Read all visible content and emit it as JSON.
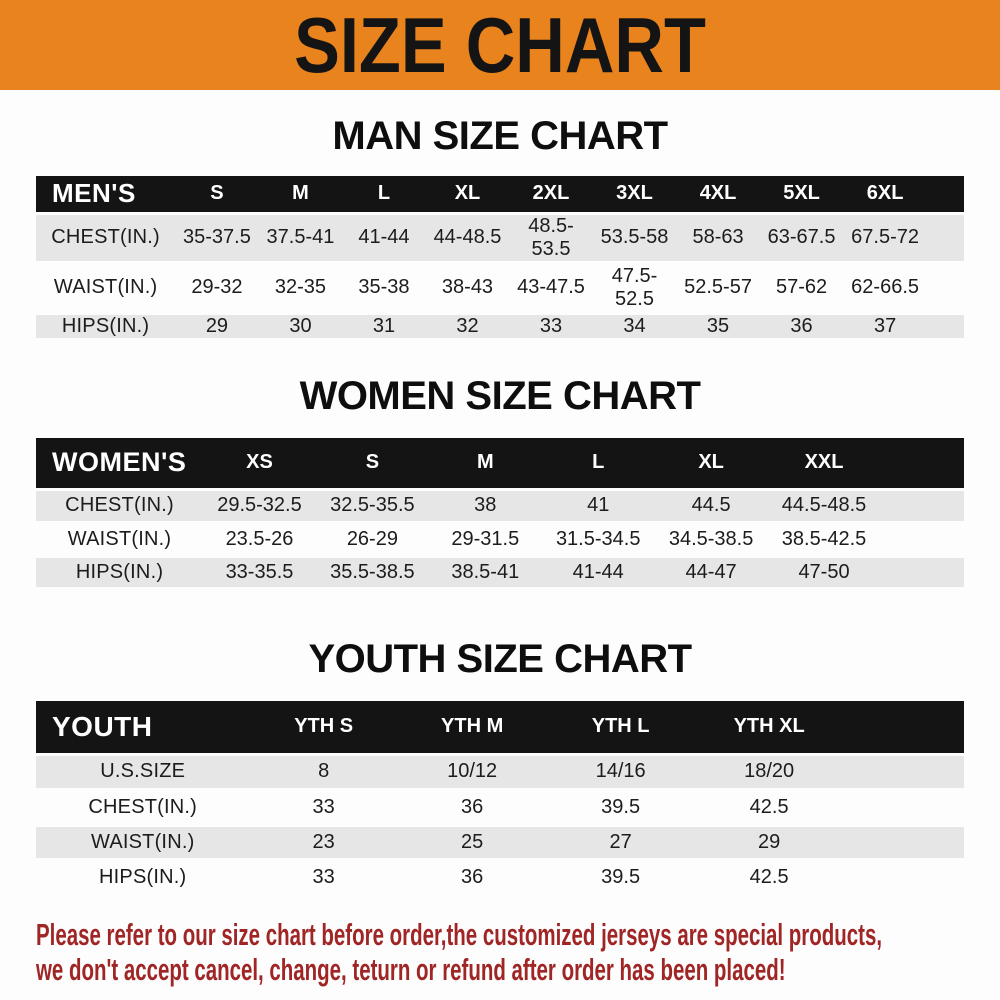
{
  "banner": {
    "title": "SIZE CHART",
    "background": "#E8831D",
    "text_color": "#141414"
  },
  "sections": [
    {
      "heading": "MAN SIZE CHART",
      "table": {
        "label": "MEN'S",
        "columns": [
          "S",
          "M",
          "L",
          "XL",
          "2XL",
          "3XL",
          "4XL",
          "5XL",
          "6XL"
        ],
        "rows": [
          {
            "label": "CHEST(IN.)",
            "values": [
              "35-37.5",
              "37.5-41",
              "41-44",
              "44-48.5",
              "48.5-53.5",
              "53.5-58",
              "58-63",
              "63-67.5",
              "67.5-72"
            ]
          },
          {
            "label": "WAIST(IN.)",
            "values": [
              "29-32",
              "32-35",
              "35-38",
              "38-43",
              "43-47.5",
              "47.5-52.5",
              "52.5-57",
              "57-62",
              "62-66.5"
            ]
          },
          {
            "label": "HIPS(IN.)",
            "values": [
              "29",
              "30",
              "31",
              "32",
              "33",
              "34",
              "35",
              "36",
              "37"
            ]
          }
        ]
      }
    },
    {
      "heading": "WOMEN SIZE CHART",
      "table": {
        "label": "WOMEN'S",
        "columns": [
          "XS",
          "S",
          "M",
          "L",
          "XL",
          "XXL"
        ],
        "rows": [
          {
            "label": "CHEST(IN.)",
            "values": [
              "29.5-32.5",
              "32.5-35.5",
              "38",
              "41",
              "44.5",
              "44.5-48.5"
            ]
          },
          {
            "label": "WAIST(IN.)",
            "values": [
              "23.5-26",
              "26-29",
              "29-31.5",
              "31.5-34.5",
              "34.5-38.5",
              "38.5-42.5"
            ]
          },
          {
            "label": "HIPS(IN.)",
            "values": [
              "33-35.5",
              "35.5-38.5",
              "38.5-41",
              "41-44",
              "44-47",
              "47-50"
            ]
          }
        ]
      }
    },
    {
      "heading": "YOUTH SIZE CHART",
      "table": {
        "label": "YOUTH",
        "columns": [
          "YTH S",
          "YTH M",
          "YTH L",
          "YTH XL"
        ],
        "rows": [
          {
            "label": "U.S.SIZE",
            "values": [
              "8",
              "10/12",
              "14/16",
              "18/20"
            ]
          },
          {
            "label": "CHEST(IN.)",
            "values": [
              "33",
              "36",
              "39.5",
              "42.5"
            ]
          },
          {
            "label": "WAIST(IN.)",
            "values": [
              "23",
              "25",
              "27",
              "29"
            ]
          },
          {
            "label": "HIPS(IN.)",
            "values": [
              "33",
              "36",
              "39.5",
              "42.5"
            ]
          }
        ]
      }
    }
  ],
  "footer": {
    "line1": "Please refer to our size chart before order,the customized jerseys are special products,",
    "line2": "we don't accept cancel, change, teturn or refund after order has been placed!",
    "text_color": "#A02525"
  },
  "colors": {
    "table_header_bg": "#141414",
    "table_header_text": "#FFFFFF",
    "row_shaded": "#E6E6E6",
    "row_plain": "#FDFDFD"
  }
}
